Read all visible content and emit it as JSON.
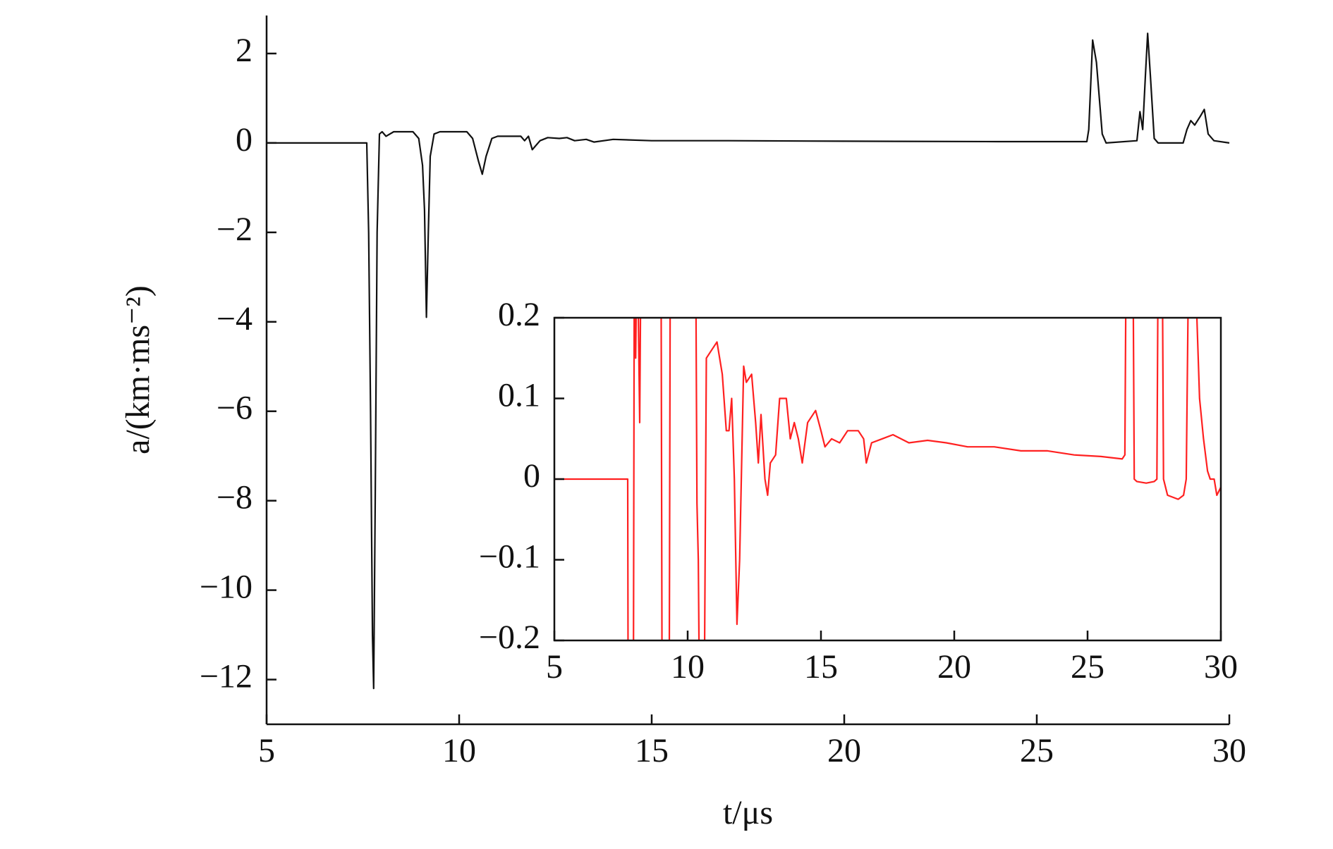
{
  "chart_data": [
    {
      "type": "line",
      "xlabel": "t/μs",
      "ylabel": "a/(km·ms⁻²)",
      "x": [
        5,
        7.6,
        7.65,
        7.7,
        7.75,
        7.78,
        7.82,
        7.87,
        7.93,
        8.0,
        8.1,
        8.3,
        8.8,
        8.95,
        9.05,
        9.1,
        9.15,
        9.2,
        9.25,
        9.35,
        9.5,
        10.2,
        10.35,
        10.5,
        10.6,
        10.7,
        10.85,
        11,
        11.3,
        11.6,
        11.7,
        11.8,
        11.9,
        12.1,
        12.3,
        12.6,
        12.8,
        13,
        13.3,
        13.5,
        14,
        15,
        16,
        17,
        20,
        24,
        26.3,
        26.35,
        26.45,
        26.55,
        26.7,
        26.8,
        27.6,
        27.68,
        27.75,
        27.82,
        27.88,
        27.95,
        28.05,
        28.15,
        28.8,
        28.9,
        29.0,
        29.1,
        29.25,
        29.35,
        29.45,
        29.6,
        30
      ],
      "series": [
        {
          "color": "#111111",
          "values": [
            0,
            0,
            -2,
            -6,
            -11,
            -12.2,
            -8,
            -2,
            0.2,
            0.25,
            0.15,
            0.25,
            0.25,
            0.1,
            -0.5,
            -1.5,
            -3.9,
            -2,
            -0.3,
            0.2,
            0.25,
            0.25,
            0.1,
            -0.4,
            -0.7,
            -0.3,
            0.1,
            0.15,
            0.15,
            0.15,
            0.05,
            0.15,
            -0.15,
            0.05,
            0.12,
            0.1,
            0.12,
            0.05,
            0.08,
            0.02,
            0.08,
            0.05,
            0.05,
            0.05,
            0.04,
            0.03,
            0.03,
            0.3,
            2.3,
            1.8,
            0.2,
            0,
            0.05,
            0.7,
            0.3,
            1.5,
            2.45,
            1.5,
            0.1,
            0,
            0,
            0.3,
            0.5,
            0.4,
            0.6,
            0.75,
            0.2,
            0.05,
            0
          ]
        }
      ],
      "xlim": [
        5,
        30
      ],
      "ylim": [
        -13,
        2.85
      ],
      "xticks": [
        5,
        10,
        15,
        20,
        25,
        30
      ],
      "yticks": [
        {
          "value": -12,
          "label": "−12"
        },
        {
          "value": -10,
          "label": "−10"
        },
        {
          "value": -8,
          "label": "−8"
        },
        {
          "value": -6,
          "label": "−6"
        },
        {
          "value": -4,
          "label": "−4"
        },
        {
          "value": -2,
          "label": "−2"
        },
        0,
        2
      ]
    },
    {
      "type": "line",
      "x": [
        5,
        7.75,
        7.78,
        7.95,
        8.0,
        8.05,
        8.1,
        8.15,
        8.2,
        8.25,
        9.0,
        9.05,
        9.3,
        9.35,
        10.3,
        10.35,
        10.4,
        10.45,
        10.6,
        10.7,
        10.9,
        11.1,
        11.3,
        11.45,
        11.55,
        11.65,
        11.75,
        11.85,
        11.95,
        12.1,
        12.2,
        12.4,
        12.55,
        12.65,
        12.75,
        12.9,
        13.0,
        13.1,
        13.3,
        13.45,
        13.7,
        13.85,
        14.0,
        14.15,
        14.3,
        14.5,
        14.8,
        15.0,
        15.15,
        15.4,
        15.7,
        16.0,
        16.4,
        16.6,
        16.7,
        16.9,
        17.3,
        17.7,
        18.3,
        19.0,
        19.7,
        20.5,
        21.5,
        22.5,
        23.5,
        24.5,
        25.5,
        26.3,
        26.4,
        26.45,
        26.7,
        26.75,
        26.85,
        27.2,
        27.5,
        27.6,
        27.65,
        27.8,
        27.85,
        28.0,
        28.4,
        28.6,
        28.7,
        28.8,
        29.0,
        29.1,
        29.2,
        29.35,
        29.5,
        29.6,
        29.75,
        29.85,
        30
      ],
      "series": [
        {
          "color": "#ff2020",
          "values": [
            0,
            0,
            -0.5,
            -0.5,
            0.3,
            0.15,
            0.3,
            0.2,
            0.07,
            0.3,
            0.3,
            -0.4,
            -0.4,
            0.3,
            0.3,
            -0.03,
            -0.1,
            -0.3,
            -0.4,
            0.15,
            0.16,
            0.17,
            0.13,
            0.06,
            0.06,
            0.1,
            0.0,
            -0.18,
            -0.1,
            0.14,
            0.12,
            0.13,
            0.07,
            0.02,
            0.08,
            0.0,
            -0.02,
            0.02,
            0.03,
            0.1,
            0.1,
            0.05,
            0.07,
            0.05,
            0.02,
            0.07,
            0.085,
            0.06,
            0.04,
            0.05,
            0.045,
            0.06,
            0.06,
            0.05,
            0.02,
            0.045,
            0.05,
            0.055,
            0.045,
            0.048,
            0.045,
            0.04,
            0.04,
            0.035,
            0.035,
            0.03,
            0.028,
            0.025,
            0.03,
            0.3,
            0.3,
            0.0,
            -0.003,
            -0.005,
            -0.003,
            0.0,
            0.3,
            0.3,
            0.0,
            -0.02,
            -0.025,
            -0.02,
            0.0,
            0.3,
            0.3,
            0.2,
            0.1,
            0.05,
            0.01,
            0.0,
            0.0,
            -0.02,
            -0.01
          ]
        }
      ],
      "xlim": [
        5,
        30
      ],
      "ylim": [
        -0.2,
        0.2
      ],
      "xticks": [
        5,
        10,
        15,
        20,
        25,
        30
      ],
      "yticks": [
        {
          "value": -0.2,
          "label": "−0.2"
        },
        {
          "value": -0.1,
          "label": "−0.1"
        },
        0,
        0.1,
        0.2
      ]
    }
  ]
}
